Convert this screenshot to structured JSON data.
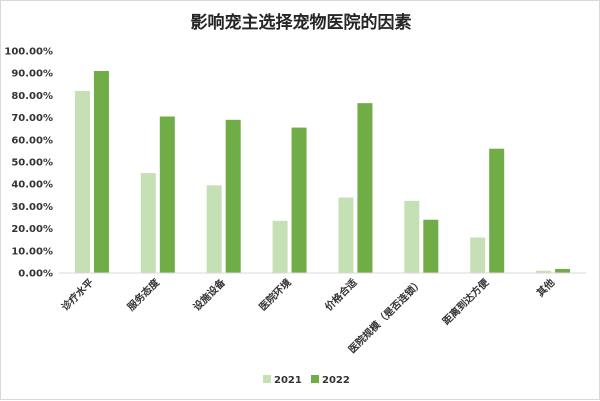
{
  "chart_data": {
    "type": "bar",
    "title": "影响宠主选择宠物医院的因素",
    "categories": [
      "诊疗水平",
      "服务态度",
      "设施设备",
      "医院环境",
      "价格合适",
      "医院规模（是否连锁）",
      "距离到达方便",
      "其他"
    ],
    "series": [
      {
        "name": "2021",
        "values": [
          82.0,
          45.0,
          39.5,
          23.5,
          34.0,
          32.5,
          16.0,
          1.0
        ],
        "color": "#c5e0b4"
      },
      {
        "name": "2022",
        "values": [
          91.0,
          70.5,
          69.0,
          65.5,
          76.5,
          24.0,
          56.0,
          1.8
        ],
        "color": "#70ad47"
      }
    ],
    "ylim": [
      0,
      100
    ],
    "yticks": [
      "0.00%",
      "10.00%",
      "20.00%",
      "30.00%",
      "40.00%",
      "50.00%",
      "60.00%",
      "70.00%",
      "80.00%",
      "90.00%",
      "100.00%"
    ],
    "grid": false,
    "legend_position": "bottom"
  }
}
